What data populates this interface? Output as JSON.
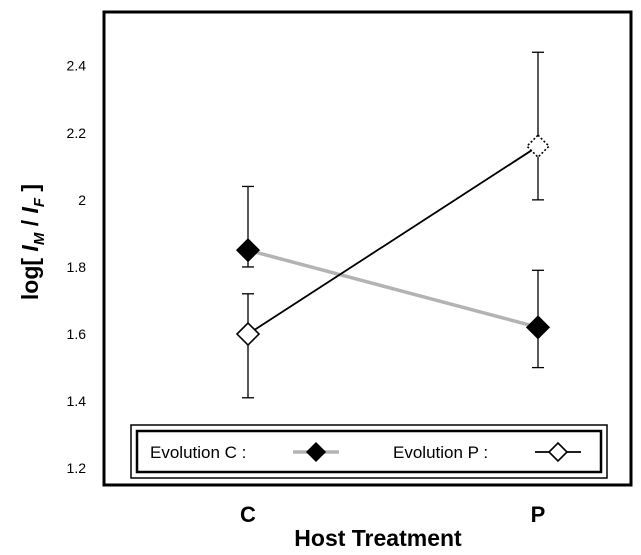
{
  "chart_data": {
    "type": "line",
    "title": "",
    "xlabel": "Host Treatment",
    "ylabel": {
      "prefix": "log[ ",
      "i1": "I",
      "sub1": "M",
      "sep": " / ",
      "i2": "I",
      "sub2": "F",
      "suffix": " ]"
    },
    "categories": [
      "C",
      "P"
    ],
    "ylim": [
      1.15,
      2.56
    ],
    "yticks": [
      {
        "value": 1.2,
        "label": "1.2"
      },
      {
        "value": 1.4,
        "label": "1.4"
      },
      {
        "value": 1.6,
        "label": "1.6"
      },
      {
        "value": 1.8,
        "label": "1.8"
      },
      {
        "value": 2.0,
        "label": "2"
      },
      {
        "value": 2.2,
        "label": "2.2"
      },
      {
        "value": 2.4,
        "label": "2.4"
      }
    ],
    "grid": false,
    "legend_position": "bottom",
    "series": [
      {
        "name": "Evolution C :",
        "marker": "filled-diamond",
        "line_color": "#b3b3b3",
        "values": [
          1.85,
          1.62
        ],
        "error_low": [
          1.8,
          1.5
        ],
        "error_high": [
          2.04,
          1.79
        ],
        "marker_style": [
          "solid",
          "solid"
        ]
      },
      {
        "name": "Evolution P :",
        "marker": "open-diamond",
        "line_color": "#000000",
        "values": [
          1.6,
          2.16
        ],
        "error_low": [
          1.41,
          2.0
        ],
        "error_high": [
          1.72,
          2.44
        ],
        "marker_style": [
          "solid",
          "dotted"
        ]
      }
    ]
  }
}
